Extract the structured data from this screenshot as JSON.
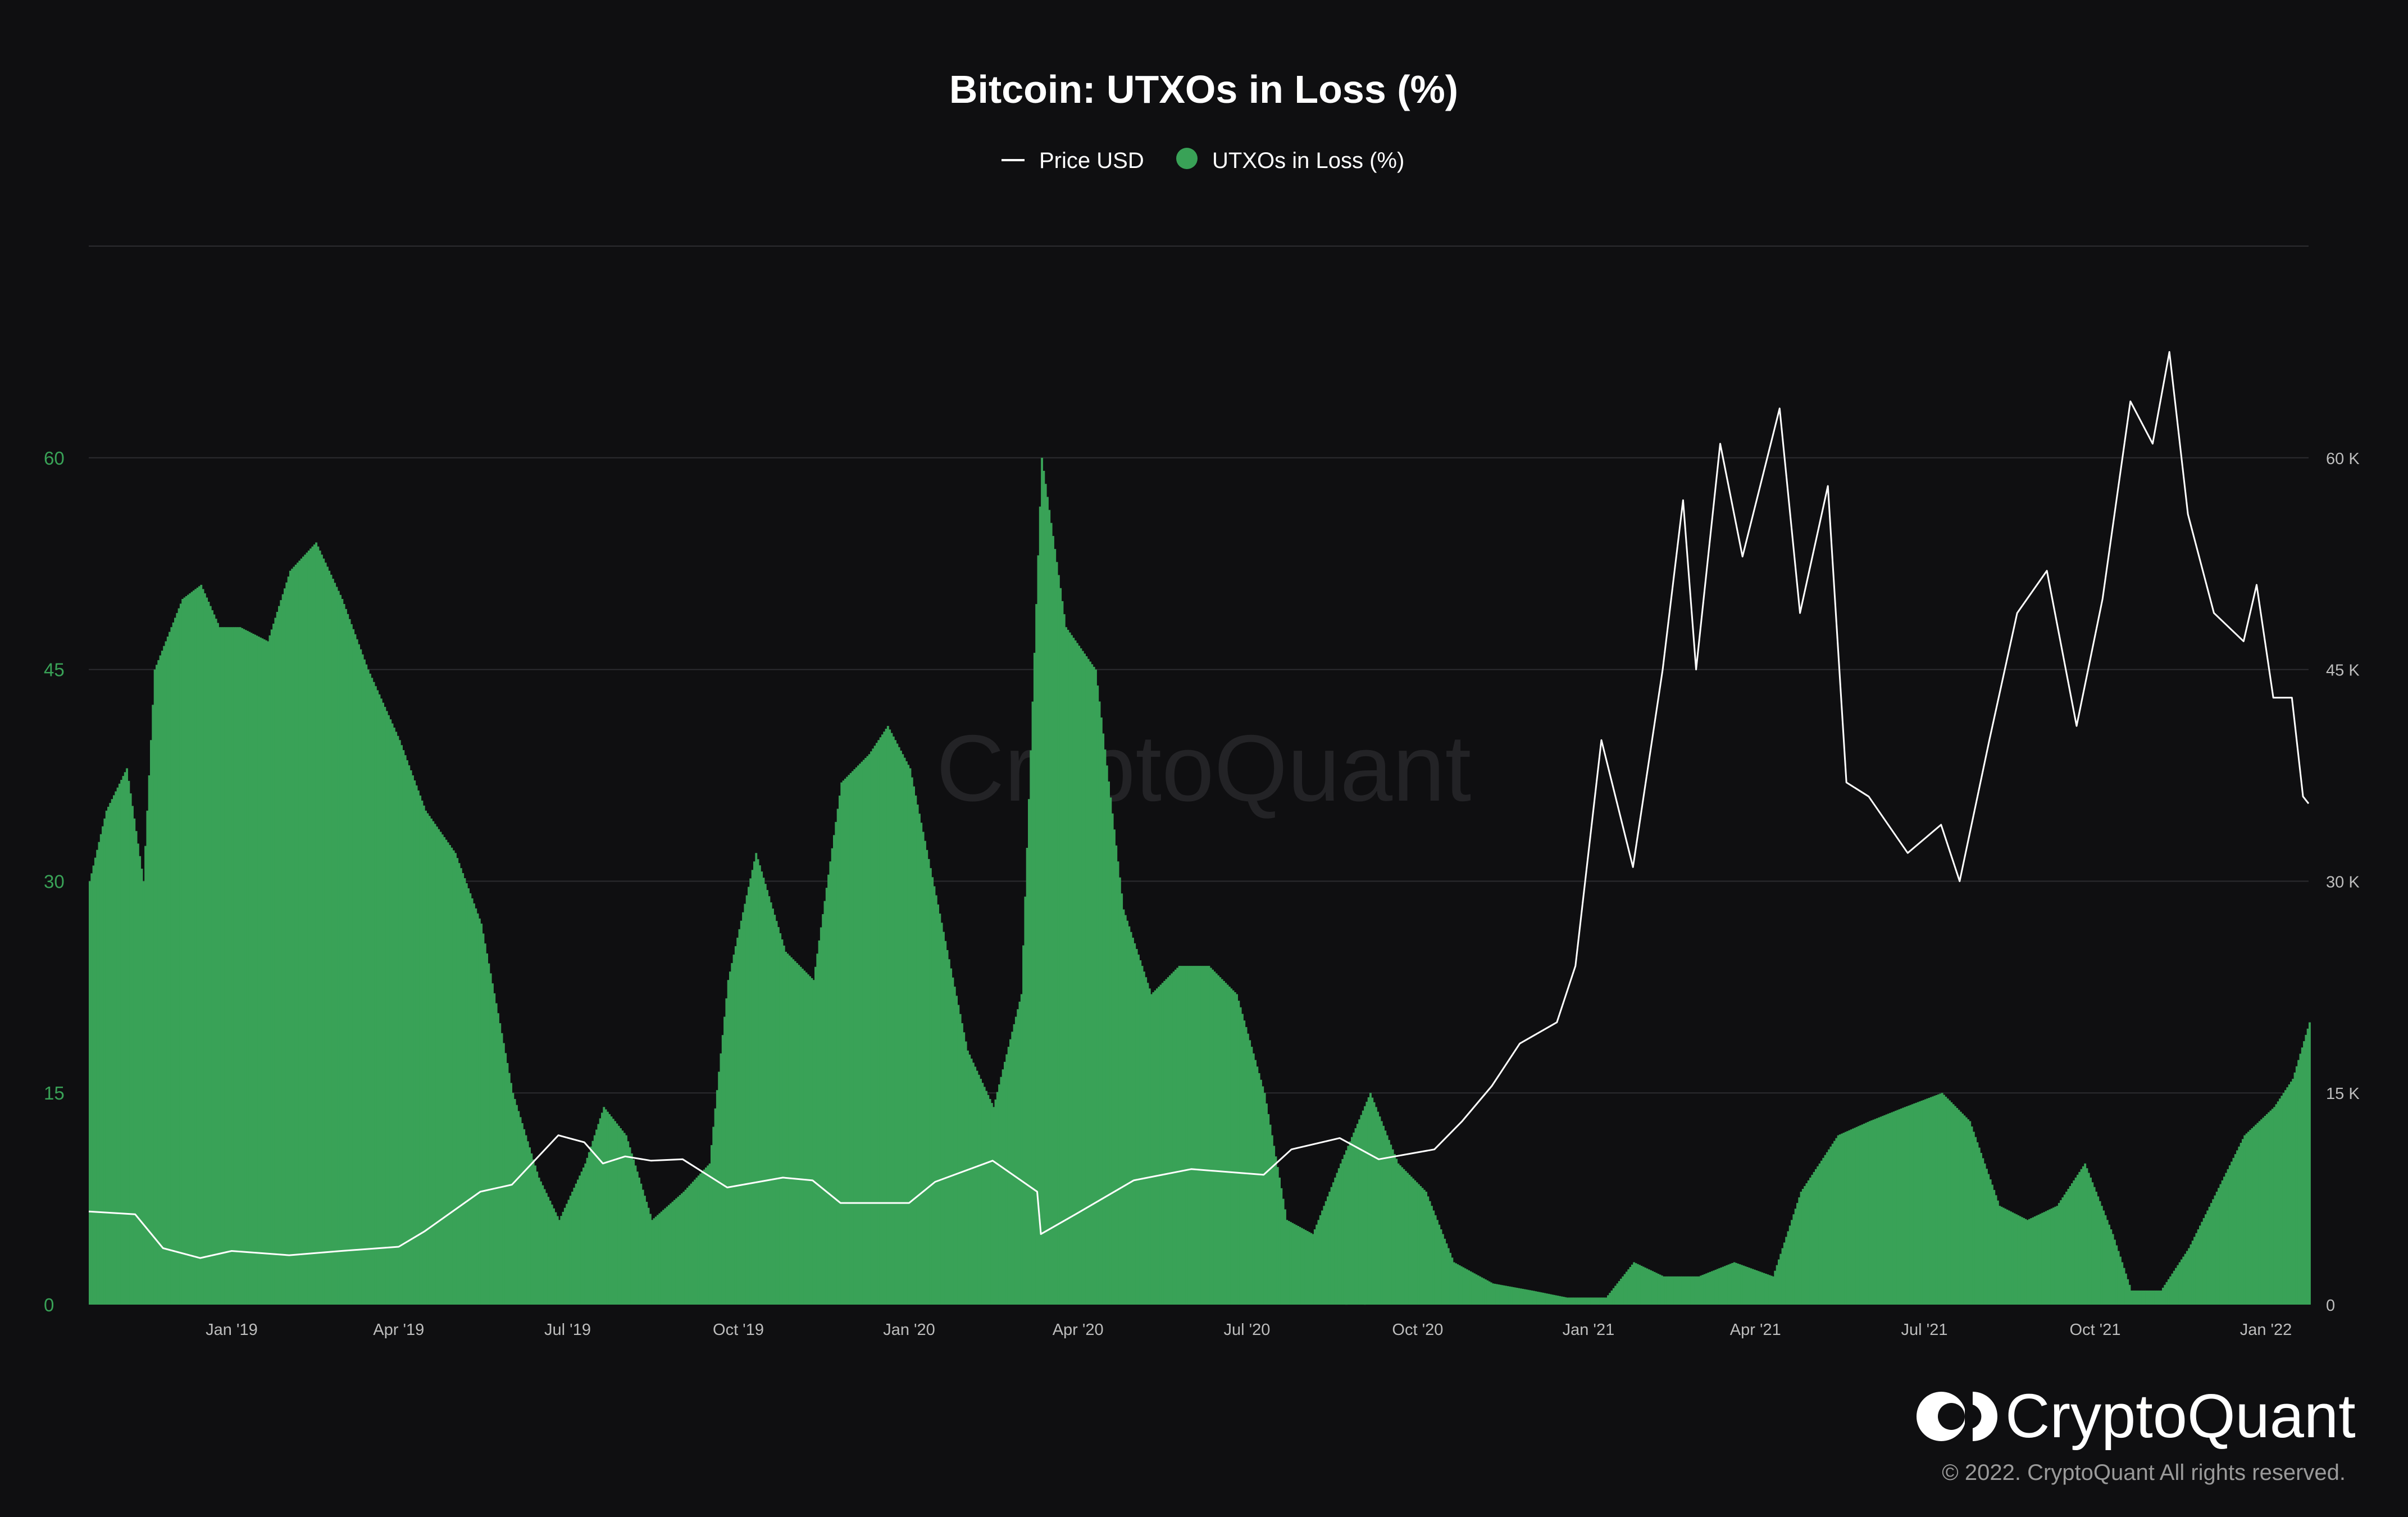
{
  "chart_data": {
    "type": "bar",
    "title": "Bitcoin: UTXOs in Loss (%)",
    "legend": {
      "placement": "top-center",
      "items": [
        "Price USD",
        "UTXOs in Loss (%)"
      ]
    },
    "grid": true,
    "x_range": [
      "2018-10-16",
      "2022-01-24"
    ],
    "x_ticks": [
      {
        "label": "Jan '19",
        "date": "2019-01-01"
      },
      {
        "label": "Apr '19",
        "date": "2019-04-01"
      },
      {
        "label": "Jul '19",
        "date": "2019-07-01"
      },
      {
        "label": "Oct '19",
        "date": "2019-10-01"
      },
      {
        "label": "Jan '20",
        "date": "2020-01-01"
      },
      {
        "label": "Apr '20",
        "date": "2020-04-01"
      },
      {
        "label": "Jul '20",
        "date": "2020-07-01"
      },
      {
        "label": "Oct '20",
        "date": "2020-10-01"
      },
      {
        "label": "Jan '21",
        "date": "2021-01-01"
      },
      {
        "label": "Apr '21",
        "date": "2021-04-01"
      },
      {
        "label": "Jul '21",
        "date": "2021-07-01"
      },
      {
        "label": "Oct '21",
        "date": "2021-10-01"
      },
      {
        "label": "Jan '22",
        "date": "2022-01-01"
      }
    ],
    "y_left": {
      "ticks": [
        "0",
        "15",
        "30",
        "45",
        "60"
      ],
      "range": [
        0,
        75
      ]
    },
    "y_right": {
      "ticks": [
        "0",
        "15 K",
        "30 K",
        "45 K",
        "60 K"
      ],
      "range": [
        0,
        75000
      ]
    },
    "series": [
      {
        "name": "UTXOs in Loss (%)",
        "type": "bar",
        "axis": "left",
        "color": "#39a257",
        "points": [
          [
            "2018-10-16",
            30
          ],
          [
            "2018-10-25",
            35
          ],
          [
            "2018-11-05",
            38
          ],
          [
            "2018-11-14",
            30
          ],
          [
            "2018-11-20",
            45
          ],
          [
            "2018-12-05",
            50
          ],
          [
            "2018-12-15",
            51
          ],
          [
            "2018-12-25",
            48
          ],
          [
            "2019-01-05",
            48
          ],
          [
            "2019-01-20",
            47
          ],
          [
            "2019-02-01",
            52
          ],
          [
            "2019-02-15",
            54
          ],
          [
            "2019-03-01",
            50
          ],
          [
            "2019-03-15",
            45
          ],
          [
            "2019-04-01",
            40
          ],
          [
            "2019-04-15",
            35
          ],
          [
            "2019-05-01",
            32
          ],
          [
            "2019-05-15",
            27
          ],
          [
            "2019-06-01",
            15
          ],
          [
            "2019-06-15",
            9
          ],
          [
            "2019-06-26",
            6
          ],
          [
            "2019-07-10",
            10
          ],
          [
            "2019-07-20",
            14
          ],
          [
            "2019-08-01",
            12
          ],
          [
            "2019-08-15",
            6
          ],
          [
            "2019-09-01",
            8
          ],
          [
            "2019-09-15",
            10
          ],
          [
            "2019-09-25",
            23
          ],
          [
            "2019-10-10",
            32
          ],
          [
            "2019-10-26",
            25
          ],
          [
            "2019-11-10",
            23
          ],
          [
            "2019-11-25",
            37
          ],
          [
            "2019-12-10",
            39
          ],
          [
            "2019-12-20",
            41
          ],
          [
            "2020-01-01",
            38
          ],
          [
            "2020-01-15",
            29
          ],
          [
            "2020-02-01",
            18
          ],
          [
            "2020-02-15",
            14
          ],
          [
            "2020-03-01",
            22
          ],
          [
            "2020-03-12",
            60
          ],
          [
            "2020-03-25",
            48
          ],
          [
            "2020-04-10",
            45
          ],
          [
            "2020-04-25",
            28
          ],
          [
            "2020-05-10",
            22
          ],
          [
            "2020-05-25",
            24
          ],
          [
            "2020-06-10",
            24
          ],
          [
            "2020-06-25",
            22
          ],
          [
            "2020-07-10",
            15
          ],
          [
            "2020-07-22",
            6
          ],
          [
            "2020-08-05",
            5
          ],
          [
            "2020-08-20",
            10
          ],
          [
            "2020-09-05",
            15
          ],
          [
            "2020-09-20",
            10
          ],
          [
            "2020-10-05",
            8
          ],
          [
            "2020-10-20",
            3
          ],
          [
            "2020-11-10",
            1.5
          ],
          [
            "2020-12-01",
            1
          ],
          [
            "2020-12-20",
            0.5
          ],
          [
            "2021-01-10",
            0.5
          ],
          [
            "2021-01-25",
            3
          ],
          [
            "2021-02-10",
            2
          ],
          [
            "2021-03-01",
            2
          ],
          [
            "2021-03-20",
            3
          ],
          [
            "2021-04-10",
            2
          ],
          [
            "2021-04-25",
            8
          ],
          [
            "2021-05-15",
            12
          ],
          [
            "2021-06-01",
            13
          ],
          [
            "2021-06-20",
            14
          ],
          [
            "2021-07-10",
            15
          ],
          [
            "2021-07-25",
            13
          ],
          [
            "2021-08-10",
            7
          ],
          [
            "2021-08-25",
            6
          ],
          [
            "2021-09-10",
            7
          ],
          [
            "2021-09-25",
            10
          ],
          [
            "2021-10-10",
            5
          ],
          [
            "2021-10-20",
            1
          ],
          [
            "2021-11-05",
            1
          ],
          [
            "2021-11-20",
            4
          ],
          [
            "2021-12-05",
            8
          ],
          [
            "2021-12-20",
            12
          ],
          [
            "2022-01-05",
            14
          ],
          [
            "2022-01-15",
            16
          ],
          [
            "2022-01-24",
            20
          ]
        ]
      },
      {
        "name": "Price USD",
        "type": "line",
        "axis": "right",
        "color": "#ffffff",
        "points": [
          [
            "2018-10-16",
            6600
          ],
          [
            "2018-11-10",
            6400
          ],
          [
            "2018-11-25",
            4000
          ],
          [
            "2018-12-15",
            3300
          ],
          [
            "2019-01-01",
            3800
          ],
          [
            "2019-02-01",
            3500
          ],
          [
            "2019-03-01",
            3800
          ],
          [
            "2019-04-01",
            4100
          ],
          [
            "2019-04-15",
            5200
          ],
          [
            "2019-05-15",
            8000
          ],
          [
            "2019-06-01",
            8500
          ],
          [
            "2019-06-26",
            12000
          ],
          [
            "2019-07-10",
            11500
          ],
          [
            "2019-07-20",
            10000
          ],
          [
            "2019-08-01",
            10500
          ],
          [
            "2019-08-15",
            10200
          ],
          [
            "2019-09-01",
            10300
          ],
          [
            "2019-09-25",
            8300
          ],
          [
            "2019-10-25",
            9000
          ],
          [
            "2019-11-10",
            8800
          ],
          [
            "2019-11-25",
            7200
          ],
          [
            "2019-12-15",
            7200
          ],
          [
            "2020-01-01",
            7200
          ],
          [
            "2020-01-15",
            8700
          ],
          [
            "2020-02-15",
            10200
          ],
          [
            "2020-03-10",
            8000
          ],
          [
            "2020-03-12",
            5000
          ],
          [
            "2020-04-01",
            6500
          ],
          [
            "2020-05-01",
            8800
          ],
          [
            "2020-06-01",
            9600
          ],
          [
            "2020-07-10",
            9200
          ],
          [
            "2020-07-25",
            11000
          ],
          [
            "2020-08-20",
            11800
          ],
          [
            "2020-09-10",
            10300
          ],
          [
            "2020-10-10",
            11000
          ],
          [
            "2020-10-25",
            13000
          ],
          [
            "2020-11-10",
            15500
          ],
          [
            "2020-11-25",
            18500
          ],
          [
            "2020-12-15",
            20000
          ],
          [
            "2020-12-25",
            24000
          ],
          [
            "2021-01-08",
            40000
          ],
          [
            "2021-01-25",
            31000
          ],
          [
            "2021-02-10",
            45000
          ],
          [
            "2021-02-21",
            57000
          ],
          [
            "2021-02-28",
            45000
          ],
          [
            "2021-03-13",
            61000
          ],
          [
            "2021-03-25",
            53000
          ],
          [
            "2021-04-14",
            63500
          ],
          [
            "2021-04-25",
            49000
          ],
          [
            "2021-05-10",
            58000
          ],
          [
            "2021-05-20",
            37000
          ],
          [
            "2021-06-01",
            36000
          ],
          [
            "2021-06-22",
            32000
          ],
          [
            "2021-07-10",
            34000
          ],
          [
            "2021-07-20",
            30000
          ],
          [
            "2021-08-05",
            40000
          ],
          [
            "2021-08-20",
            49000
          ],
          [
            "2021-09-05",
            52000
          ],
          [
            "2021-09-21",
            41000
          ],
          [
            "2021-10-05",
            50000
          ],
          [
            "2021-10-20",
            64000
          ],
          [
            "2021-11-01",
            61000
          ],
          [
            "2021-11-10",
            67500
          ],
          [
            "2021-11-20",
            56000
          ],
          [
            "2021-12-04",
            49000
          ],
          [
            "2021-12-20",
            47000
          ],
          [
            "2021-12-27",
            51000
          ],
          [
            "2022-01-05",
            43000
          ],
          [
            "2022-01-15",
            43000
          ],
          [
            "2022-01-21",
            36000
          ],
          [
            "2022-01-24",
            35500
          ]
        ]
      }
    ],
    "watermark": "CryptoQuant"
  },
  "brand": {
    "name": "CryptoQuant",
    "copyright": "© 2022. CryptoQuant All rights reserved."
  },
  "colors": {
    "background": "#0f0f11",
    "grid": "#2c2c30",
    "bars": "#39a257",
    "price_line": "#ffffff",
    "left_axis_text": "#39a257"
  }
}
